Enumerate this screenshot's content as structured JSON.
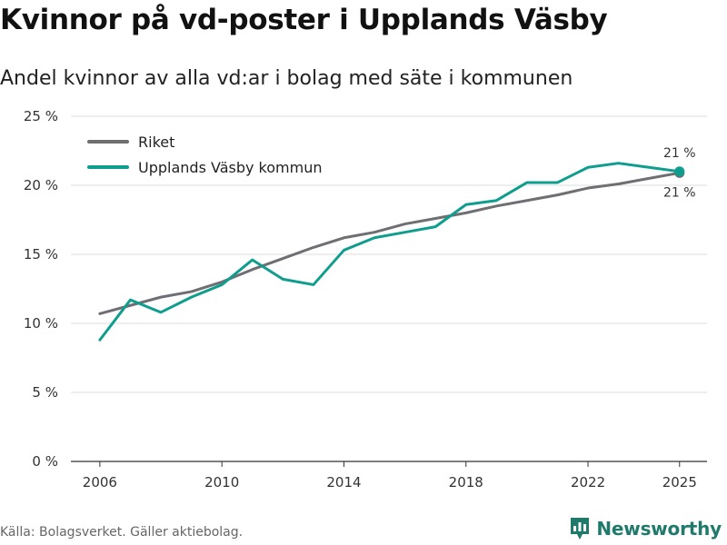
{
  "header": {
    "title": "Kvinnor på vd-poster i Upplands Väsby",
    "subtitle": "Andel kvinnor av alla vd:ar i bolag med säte i kommunen"
  },
  "footer": {
    "source": "Källa: Bolagsverket. Gäller aktiebolag.",
    "brand": "Newsworthy"
  },
  "colors": {
    "riket": "#6e6e73",
    "kommun": "#0f9e8e",
    "grid": "#dddddd",
    "brand": "#1f7a6b"
  },
  "chart_data": {
    "type": "line",
    "title": "Kvinnor på vd-poster i Upplands Väsby",
    "xlabel": "",
    "ylabel": "",
    "xlim": [
      2006,
      2025
    ],
    "ylim": [
      0,
      25
    ],
    "grid": true,
    "legend_position": "top-left",
    "x_ticks": [
      2006,
      2010,
      2014,
      2018,
      2022,
      2025
    ],
    "x_tick_labels": [
      "2006",
      "2010",
      "2014",
      "2018",
      "2022",
      "2025"
    ],
    "y_ticks": [
      0,
      5,
      10,
      15,
      20,
      25
    ],
    "y_tick_labels": [
      "0 %",
      "5 %",
      "10 %",
      "15 %",
      "20 %",
      "25 %"
    ],
    "x": [
      2006,
      2007,
      2008,
      2009,
      2010,
      2011,
      2012,
      2013,
      2014,
      2015,
      2016,
      2017,
      2018,
      2019,
      2020,
      2021,
      2022,
      2023,
      2024,
      2025
    ],
    "series": [
      {
        "name": "Riket",
        "color": "#6e6e73",
        "values": [
          10.7,
          11.3,
          11.9,
          12.3,
          13.0,
          13.9,
          14.7,
          15.5,
          16.2,
          16.6,
          17.2,
          17.6,
          18.0,
          18.5,
          18.9,
          19.3,
          19.8,
          20.1,
          20.5,
          20.9
        ],
        "end_label": "21 %"
      },
      {
        "name": "Upplands Väsby kommun",
        "color": "#0f9e8e",
        "values": [
          8.8,
          11.7,
          10.8,
          11.9,
          12.8,
          14.6,
          13.2,
          12.8,
          15.3,
          16.2,
          16.6,
          17.0,
          18.6,
          18.9,
          20.2,
          20.2,
          21.3,
          21.6,
          21.3,
          21.0
        ],
        "end_label": "21 %"
      }
    ]
  }
}
